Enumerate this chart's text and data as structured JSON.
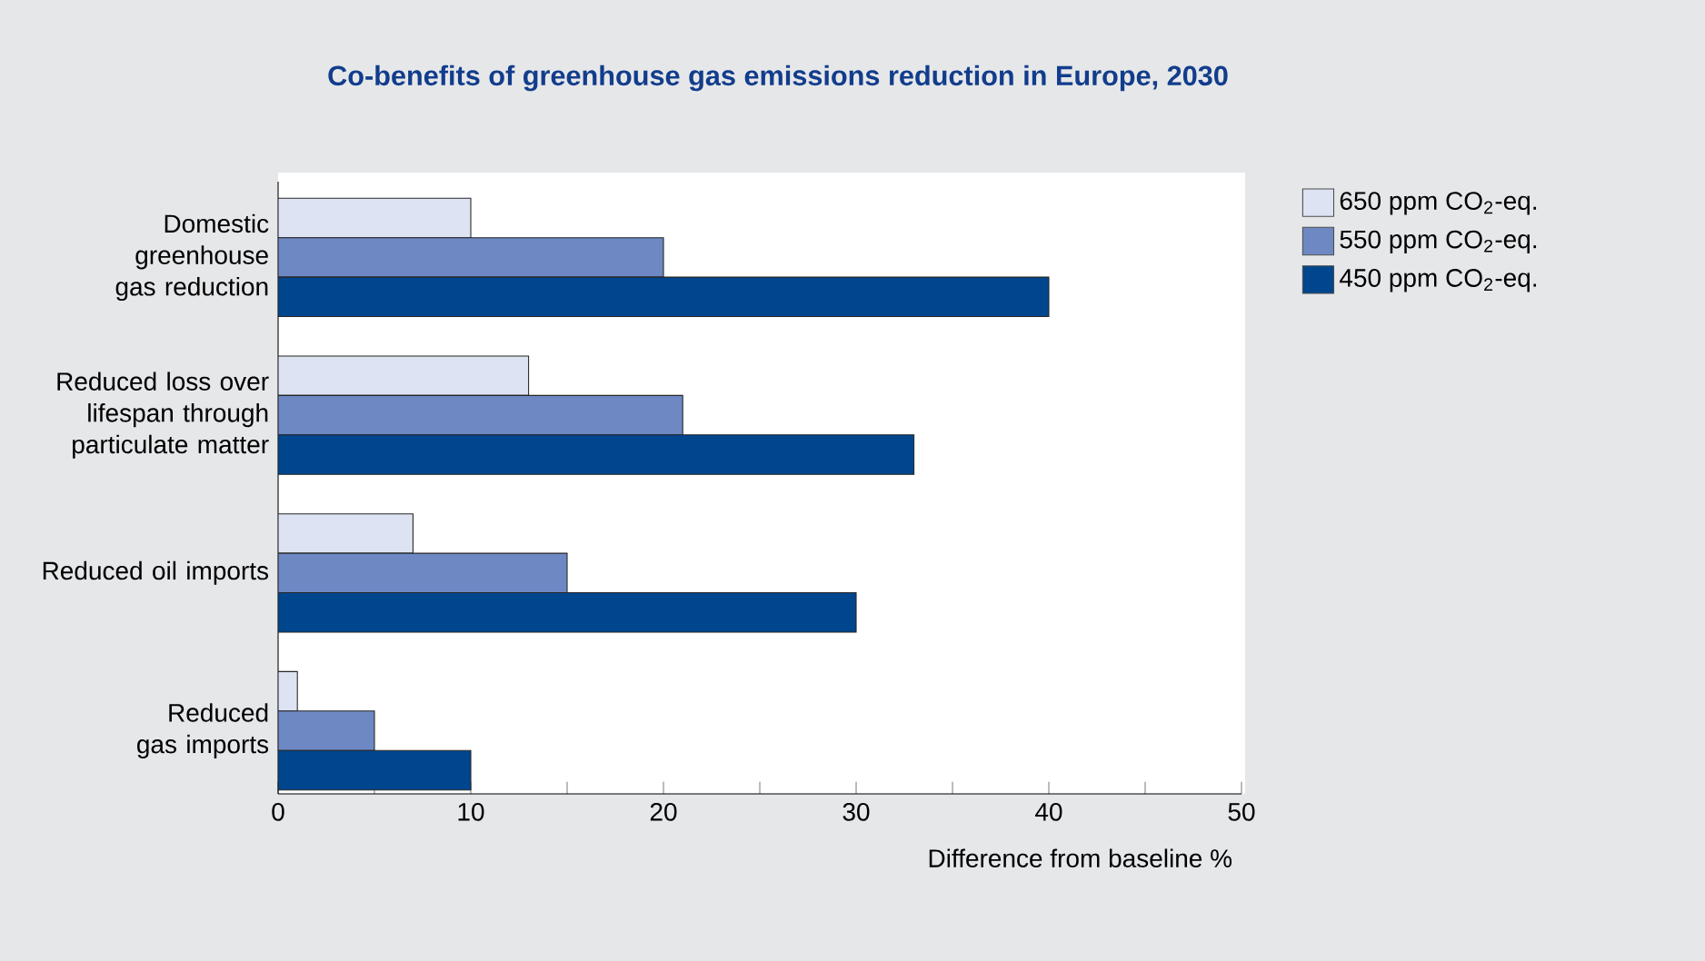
{
  "chart_data": {
    "type": "bar",
    "orientation": "horizontal",
    "title": "Co-benefits of greenhouse gas emissions reduction in Europe, 2030",
    "xlabel": "Difference from baseline %",
    "categories": [
      "Domestic greenhouse gas reduction",
      "Reduced loss over lifespan through particulate matter",
      "Reduced oil imports",
      "Reduced gas imports"
    ],
    "series": [
      {
        "name": "650 ppm CO$_{2}$-eq.",
        "color": "#dde3f3",
        "values": [
          10,
          13,
          7,
          1
        ]
      },
      {
        "name": "550 ppm CO$_{2}$-eq.",
        "color": "#6e88c4",
        "values": [
          20,
          21,
          15,
          5
        ]
      },
      {
        "name": "450 ppm CO$_{2}$-eq.",
        "color": "#00468e",
        "values": [
          40,
          33,
          30,
          10
        ]
      }
    ],
    "xlim": [
      0,
      50
    ],
    "xticks": [
      0,
      {
        "value": 5,
        "label": null
      },
      10,
      {
        "value": 15,
        "label": null
      },
      20,
      {
        "value": 25,
        "label": null
      },
      30,
      {
        "value": 35,
        "label": null
      },
      40,
      {
        "value": 45,
        "label": null
      },
      50
    ],
    "grid": false,
    "legend": "right"
  }
}
